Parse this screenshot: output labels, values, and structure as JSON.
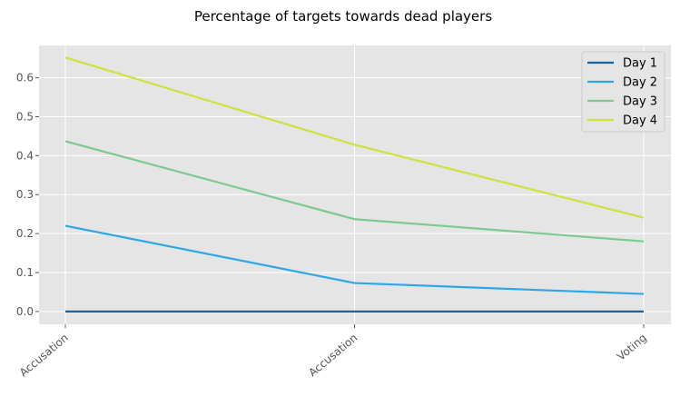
{
  "chart_data": {
    "type": "line",
    "title": "Percentage of targets towards dead players",
    "xlabel": "",
    "ylabel": "",
    "categories": [
      "Accusation",
      "Accusation",
      "Voting"
    ],
    "ylim": [
      -0.033,
      0.683
    ],
    "yticks": [
      0.0,
      0.1,
      0.2,
      0.3,
      0.4,
      0.5,
      0.6
    ],
    "ytick_labels": [
      "0.0",
      "0.1",
      "0.2",
      "0.3",
      "0.4",
      "0.5",
      "0.6"
    ],
    "grid": true,
    "legend_position": "top-right",
    "series": [
      {
        "name": "Day 1",
        "color": "#1565a6",
        "values": [
          0.0,
          0.0,
          0.0
        ]
      },
      {
        "name": "Day 2",
        "color": "#2ea7e6",
        "values": [
          0.22,
          0.073,
          0.045
        ]
      },
      {
        "name": "Day 3",
        "color": "#7cca8f",
        "values": [
          0.437,
          0.237,
          0.18
        ]
      },
      {
        "name": "Day 4",
        "color": "#cfe23a",
        "values": [
          0.652,
          0.428,
          0.241
        ]
      }
    ]
  }
}
